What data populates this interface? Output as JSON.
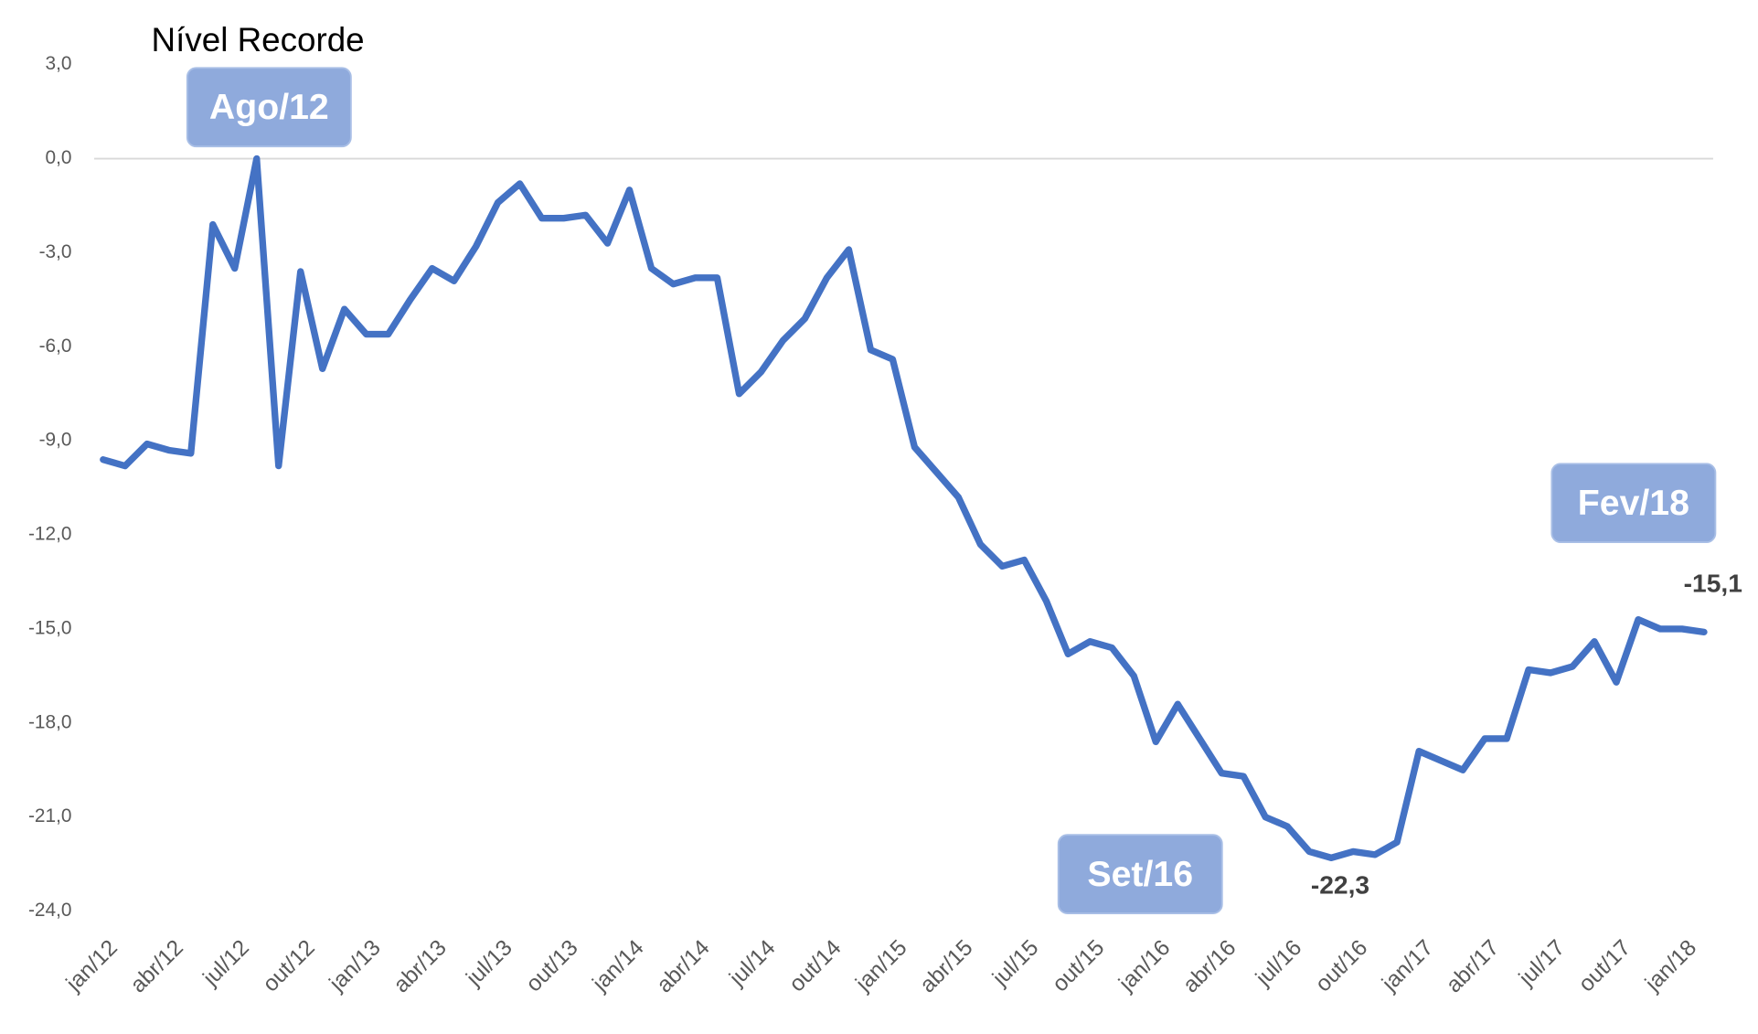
{
  "chart_data": {
    "type": "line",
    "annotations": [
      "Nível Recorde",
      "Ago/12",
      "Set/16",
      "Fev/18"
    ],
    "categories": [
      "jan/12",
      null,
      null,
      "abr/12",
      null,
      null,
      "jul/12",
      null,
      null,
      "out/12",
      null,
      null,
      "jan/13",
      null,
      null,
      "abr/13",
      null,
      null,
      "jul/13",
      null,
      null,
      "out/13",
      null,
      null,
      "jan/14",
      null,
      null,
      "abr/14",
      null,
      null,
      "jul/14",
      null,
      null,
      "out/14",
      null,
      null,
      "jan/15",
      null,
      null,
      "abr/15",
      null,
      null,
      "jul/15",
      null,
      null,
      "out/15",
      null,
      null,
      "jan/16",
      null,
      null,
      "abr/16",
      null,
      null,
      "jul/16",
      null,
      null,
      "out/16",
      null,
      null,
      "jan/17",
      null,
      null,
      "abr/17",
      null,
      null,
      "jul/17",
      null,
      null,
      "out/17",
      null,
      null,
      "jan/18",
      null
    ],
    "series": [
      {
        "color": "#4472c4",
        "values": [
          -9.6,
          -9.8,
          -9.1,
          -9.3,
          -9.4,
          -2.1,
          -3.5,
          0.0,
          -9.8,
          -3.6,
          -6.7,
          -4.8,
          -5.6,
          -5.6,
          -4.5,
          -3.5,
          -3.9,
          -2.8,
          -1.4,
          -0.8,
          -1.9,
          -1.9,
          -1.8,
          -2.7,
          -1.0,
          -3.5,
          -4.0,
          -3.8,
          -3.8,
          -7.5,
          -6.8,
          -5.8,
          -5.1,
          -3.8,
          -2.9,
          -6.1,
          -6.4,
          -9.2,
          -10.0,
          -10.8,
          -12.3,
          -13.0,
          -12.8,
          -14.1,
          -15.8,
          -15.4,
          -15.6,
          -16.5,
          -18.6,
          -17.4,
          -18.5,
          -19.6,
          -19.7,
          -21.0,
          -21.3,
          -22.1,
          -22.3,
          -22.1,
          -22.2,
          -21.8,
          -18.9,
          -19.2,
          -19.5,
          -18.5,
          -18.5,
          -16.3,
          -16.4,
          -16.2,
          -15.4,
          -16.7,
          -14.7,
          -15.0,
          -15.0,
          -15.1
        ],
        "value_labels": [
          null,
          null,
          null,
          null,
          null,
          null,
          null,
          null,
          null,
          null,
          null,
          null,
          null,
          null,
          null,
          null,
          null,
          null,
          null,
          null,
          null,
          null,
          null,
          null,
          null,
          null,
          null,
          null,
          null,
          null,
          null,
          null,
          null,
          null,
          null,
          null,
          null,
          null,
          null,
          null,
          null,
          null,
          null,
          null,
          null,
          null,
          null,
          null,
          null,
          null,
          null,
          null,
          null,
          null,
          null,
          null,
          "-22,3",
          null,
          null,
          null,
          null,
          null,
          null,
          null,
          null,
          null,
          null,
          null,
          null,
          null,
          null,
          null,
          null,
          "-15,1"
        ]
      }
    ],
    "ylim": [
      -24,
      3
    ],
    "yticks": [
      {
        "value": 3,
        "label": "3,0"
      },
      {
        "value": 0,
        "label": "0,0"
      },
      {
        "value": -3,
        "label": "-3,0"
      },
      {
        "value": -6,
        "label": "-6,0"
      },
      {
        "value": -9,
        "label": "-9,0"
      },
      {
        "value": -12,
        "label": "-12,0"
      },
      {
        "value": -15,
        "label": "-15,0"
      },
      {
        "value": -18,
        "label": "-18,0"
      },
      {
        "value": -21,
        "label": "-21,0"
      },
      {
        "value": -24,
        "label": "-24,0"
      }
    ],
    "grid": false
  }
}
